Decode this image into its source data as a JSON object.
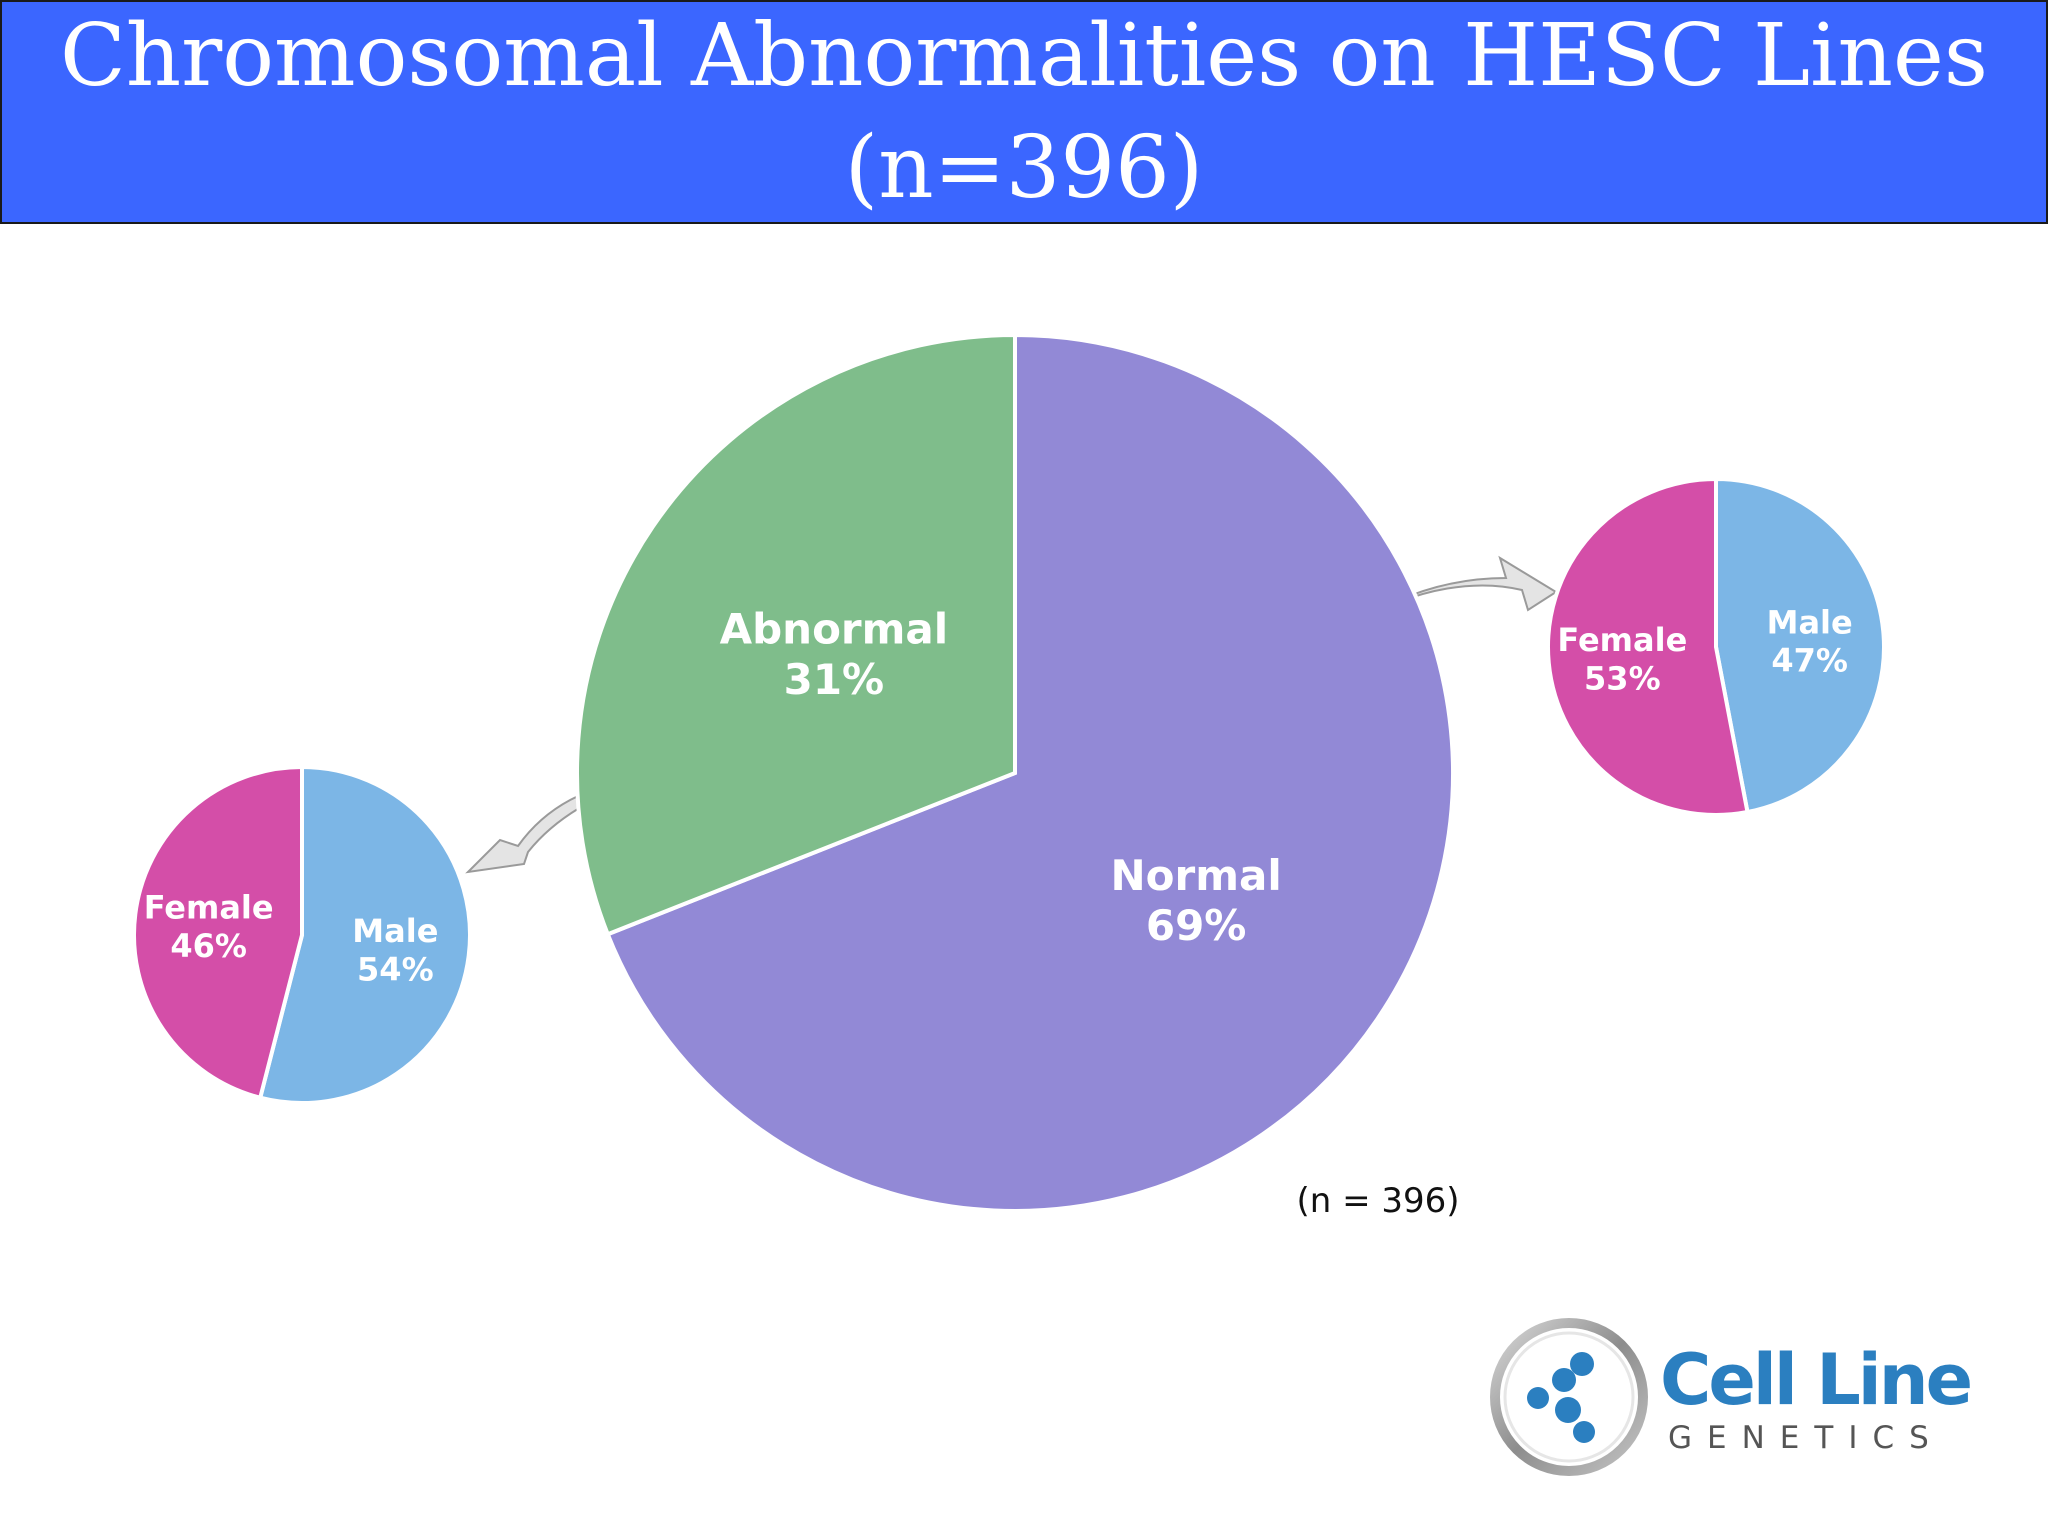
{
  "title": {
    "line1": "Chromosomal Abnormalities on HESC Lines",
    "line2": "(n=396)"
  },
  "colors": {
    "title_bar": "#3b66ff",
    "normal": "#9289d6",
    "abnormal": "#7fbd8b",
    "female": "#d44ea8",
    "male": "#7cb6e6",
    "arrow": "#e4e4e4"
  },
  "chart_data": [
    {
      "type": "pie",
      "name": "main",
      "note": "(n = 396)",
      "slices": [
        {
          "label": "Normal",
          "value": 69,
          "value_label": "69%",
          "color": "#9289d6"
        },
        {
          "label": "Abnormal",
          "value": 31,
          "value_label": "31%",
          "color": "#7fbd8b"
        }
      ]
    },
    {
      "type": "pie",
      "name": "normal-breakdown",
      "slices": [
        {
          "label": "Male",
          "value": 47,
          "value_label": "47%",
          "color": "#7cb6e6"
        },
        {
          "label": "Female",
          "value": 53,
          "value_label": "53%",
          "color": "#d44ea8"
        }
      ]
    },
    {
      "type": "pie",
      "name": "abnormal-breakdown",
      "slices": [
        {
          "label": "Male",
          "value": 54,
          "value_label": "54%",
          "color": "#7cb6e6"
        },
        {
          "label": "Female",
          "value": 46,
          "value_label": "46%",
          "color": "#d44ea8"
        }
      ]
    }
  ],
  "logo": {
    "name": "Cell Line",
    "subtitle": "GENETICS"
  },
  "icons": {
    "logo_mark": "molecule-icon",
    "connector": "curved-arrow-icon"
  }
}
